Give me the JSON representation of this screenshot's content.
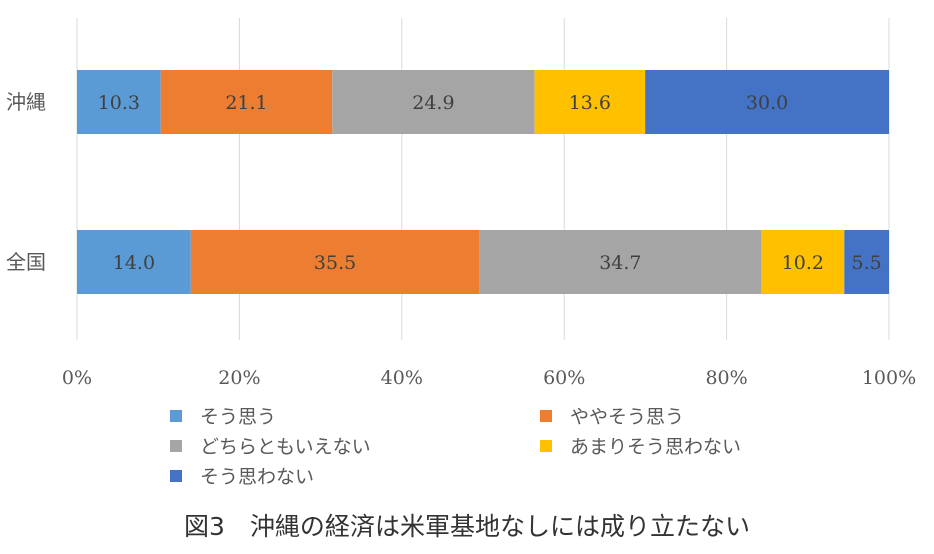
{
  "chart_data": {
    "type": "bar",
    "orientation": "horizontal",
    "stacked": true,
    "percent_stacked": true,
    "categories": [
      "沖縄",
      "全国"
    ],
    "series": [
      {
        "name": "そう思う",
        "color": "#5B9BD5",
        "values": [
          10.3,
          14.0
        ]
      },
      {
        "name": "ややそう思う",
        "color": "#ED7D31",
        "values": [
          21.1,
          35.5
        ]
      },
      {
        "name": "どちらともいえない",
        "color": "#A5A5A5",
        "values": [
          24.9,
          34.7
        ]
      },
      {
        "name": "あまりそう思わない",
        "color": "#FFC000",
        "values": [
          13.6,
          10.2
        ]
      },
      {
        "name": "そう思わない",
        "color": "#4472C4",
        "values": [
          30.0,
          5.5
        ]
      }
    ],
    "x_ticks": [
      "0%",
      "20%",
      "40%",
      "60%",
      "80%",
      "100%"
    ],
    "xlim": [
      0,
      100
    ],
    "grid": true,
    "legend": "bottom"
  },
  "caption": "図3　沖縄の経済は米軍基地なしには成り立たない"
}
